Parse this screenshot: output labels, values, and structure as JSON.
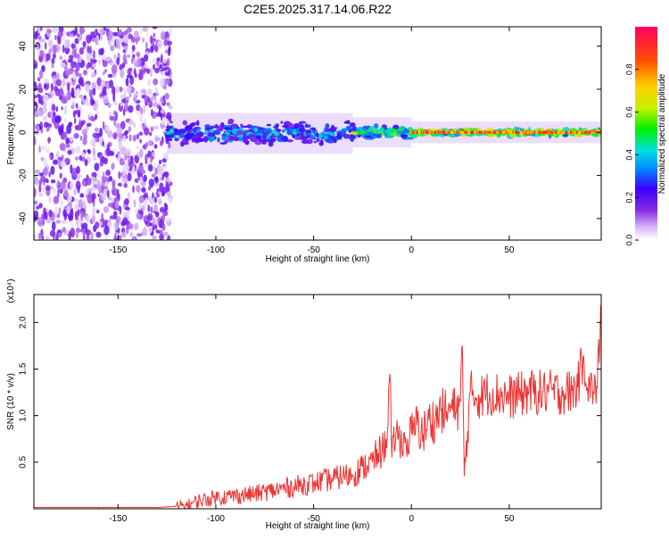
{
  "title": "C2E5.2025.317.14.06.R22",
  "chart_data": [
    {
      "type": "heatmap",
      "title": "C2E5.2025.317.14.06.R22",
      "xlabel": "Height of straight line (km)",
      "ylabel": "Frequency (Hz)",
      "xlim": [
        -193,
        97
      ],
      "ylim": [
        -50,
        49
      ],
      "xticks": [
        -150,
        -100,
        -50,
        0,
        50
      ],
      "yticks": [
        -40,
        -20,
        0,
        20,
        40
      ],
      "colorbar": {
        "label": "Normalized spectral amplitude",
        "range": [
          0,
          1
        ],
        "ticks": [
          0.0,
          0.2,
          0.4,
          0.6,
          0.8
        ],
        "tick_labels": [
          "0.0",
          "0.2",
          "0.4",
          "0.6",
          "0.8"
        ],
        "palette": [
          "#ffffff",
          "#d8b8f8",
          "#8a2be2",
          "#3a00ff",
          "#0090ff",
          "#00e0e0",
          "#00f000",
          "#c8f000",
          "#ffd000",
          "#ff5000",
          "#ff0060"
        ]
      },
      "regions": [
        {
          "x": [
            -193,
            -123
          ],
          "freq": [
            -50,
            49
          ],
          "amplitude": 0.1,
          "pattern": "scattered noise"
        },
        {
          "x": [
            -125,
            -30
          ],
          "freq": [
            -7,
            6
          ],
          "amplitude": 0.35,
          "pattern": "band"
        },
        {
          "x": [
            -30,
            0
          ],
          "freq": [
            -4,
            4
          ],
          "amplitude": 0.5,
          "pattern": "band"
        },
        {
          "x": [
            0,
            97
          ],
          "freq": [
            -2,
            2
          ],
          "amplitude": 0.75,
          "pattern": "band"
        }
      ]
    },
    {
      "type": "line",
      "xlabel": "Height of straight line (km)",
      "ylabel": "SNR (10 * v/v)",
      "yscale_label": "(x10⁴)",
      "xlim": [
        -193,
        97
      ],
      "ylim": [
        0,
        2.3
      ],
      "xticks": [
        -150,
        -100,
        -50,
        0,
        50
      ],
      "yticks": [
        0.5,
        1.0,
        1.5,
        2.0
      ],
      "ytick_labels": [
        "0.5",
        "1.0",
        "1.5",
        "2.0"
      ],
      "series": [
        {
          "color": "#ee3333",
          "x": [
            -193,
            -160,
            -130,
            -115,
            -110,
            -100,
            -90,
            -80,
            -70,
            -60,
            -50,
            -40,
            -35,
            -30,
            -25,
            -20,
            -17,
            -15,
            -13,
            -11,
            -10,
            -8,
            -5,
            -2,
            0,
            3,
            6,
            9,
            12,
            15,
            18,
            20,
            23,
            25,
            26,
            27,
            30,
            35,
            40,
            50,
            60,
            70,
            80,
            85,
            88,
            90,
            93,
            95,
            97
          ],
          "y": [
            0.01,
            0.01,
            0.01,
            0.03,
            0.08,
            0.12,
            0.14,
            0.16,
            0.2,
            0.24,
            0.28,
            0.32,
            0.35,
            0.36,
            0.45,
            0.5,
            0.6,
            0.6,
            0.75,
            1.45,
            0.55,
            0.8,
            0.7,
            0.75,
            0.8,
            0.9,
            0.8,
            0.95,
            0.95,
            1.05,
            1.05,
            1.1,
            1.05,
            1.15,
            1.75,
            0.35,
            1.25,
            1.2,
            1.25,
            1.2,
            1.25,
            1.25,
            1.25,
            1.3,
            1.65,
            1.3,
            1.25,
            1.3,
            2.2
          ]
        }
      ]
    }
  ]
}
